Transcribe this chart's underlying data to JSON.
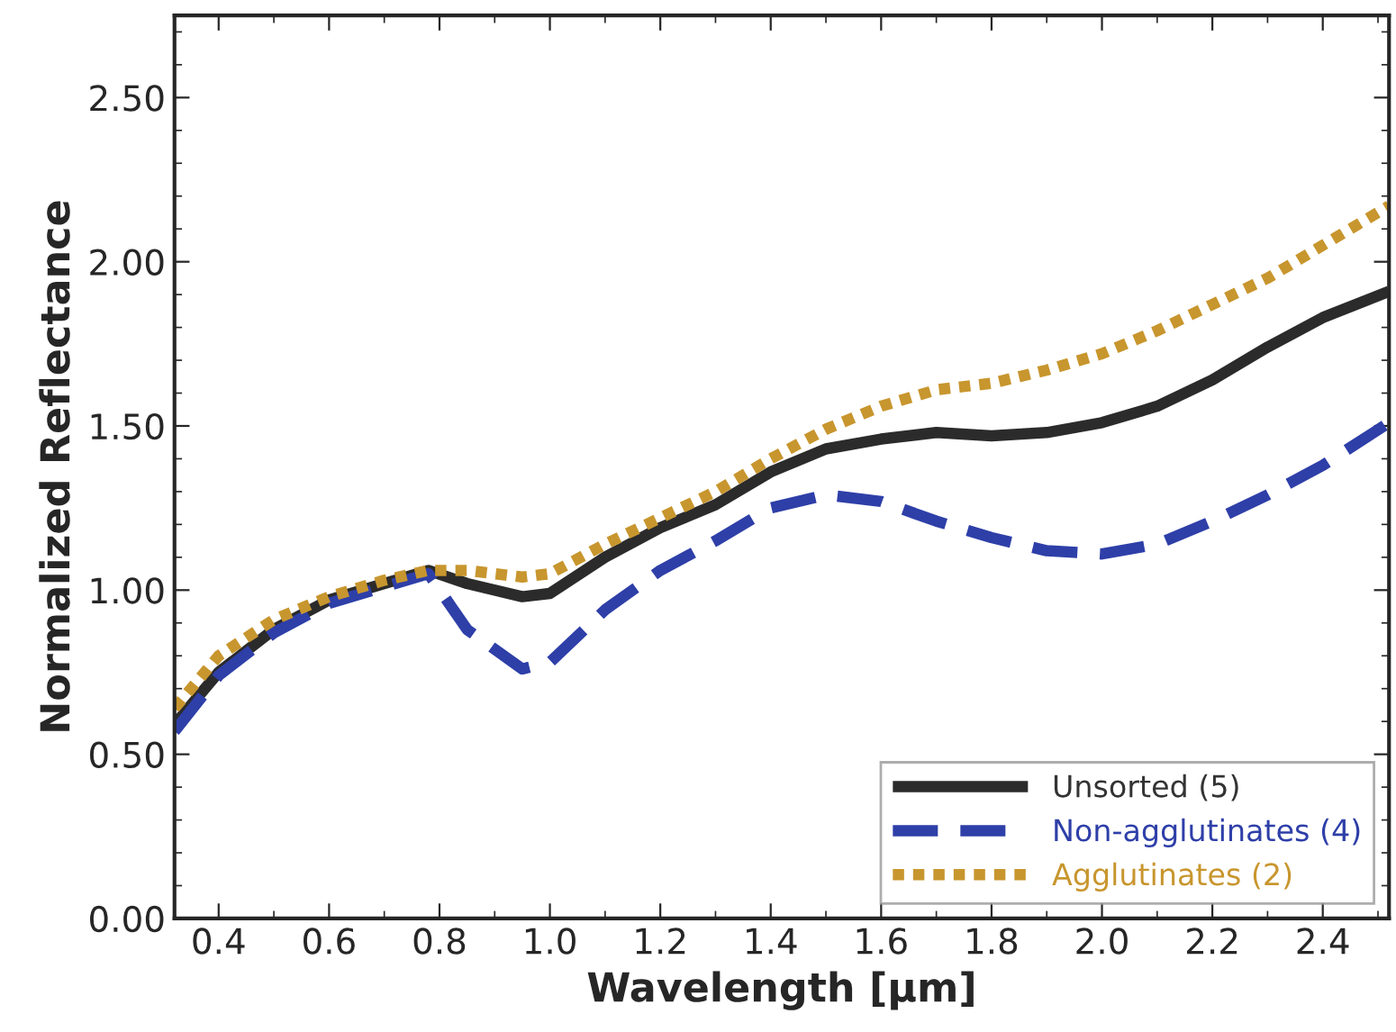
{
  "chart_data": {
    "type": "line",
    "xlabel": "Wavelength [µm]",
    "ylabel": "Normalized Reflectance",
    "x": [
      0.32,
      0.4,
      0.5,
      0.6,
      0.7,
      0.78,
      0.85,
      0.95,
      1.0,
      1.1,
      1.2,
      1.3,
      1.4,
      1.5,
      1.6,
      1.7,
      1.8,
      1.9,
      2.0,
      2.1,
      2.2,
      2.3,
      2.4,
      2.52
    ],
    "series": [
      {
        "name": "Unsorted (5)",
        "color": "#2b2b2b",
        "line_style": "solid",
        "values": [
          0.59,
          0.75,
          0.88,
          0.97,
          1.02,
          1.06,
          1.02,
          0.98,
          0.99,
          1.1,
          1.19,
          1.26,
          1.36,
          1.43,
          1.46,
          1.48,
          1.47,
          1.48,
          1.51,
          1.56,
          1.64,
          1.74,
          1.83,
          1.91
        ]
      },
      {
        "name": "Non-agglutinates (4)",
        "color": "#2e3fa8",
        "line_style": "dashed",
        "values": [
          0.57,
          0.74,
          0.87,
          0.96,
          1.01,
          1.05,
          0.88,
          0.76,
          0.78,
          0.94,
          1.06,
          1.15,
          1.25,
          1.29,
          1.27,
          1.21,
          1.16,
          1.12,
          1.11,
          1.14,
          1.21,
          1.29,
          1.38,
          1.51
        ]
      },
      {
        "name": "Agglutinates (2)",
        "color": "#c8962e",
        "line_style": "dotted",
        "values": [
          0.64,
          0.8,
          0.91,
          0.98,
          1.03,
          1.06,
          1.06,
          1.04,
          1.05,
          1.14,
          1.22,
          1.3,
          1.4,
          1.49,
          1.56,
          1.61,
          1.63,
          1.67,
          1.72,
          1.79,
          1.87,
          1.95,
          2.05,
          2.17
        ]
      }
    ],
    "xlim": [
      0.32,
      2.52
    ],
    "ylim": [
      0,
      2.75
    ],
    "xticks": [
      0.4,
      0.6,
      0.8,
      {
        "value": 1,
        "label": "1.0"
      },
      1.2,
      1.4,
      1.6,
      1.8,
      {
        "value": 2,
        "label": "2.0"
      },
      2.2,
      2.4
    ],
    "yticks": [
      {
        "value": 0,
        "label": "0.00"
      },
      {
        "value": 0.5,
        "label": "0.50"
      },
      {
        "value": 1.0,
        "label": "1.00"
      },
      {
        "value": 1.5,
        "label": "1.50"
      },
      {
        "value": 2.0,
        "label": "2.00"
      },
      {
        "value": 2.5,
        "label": "2.50"
      }
    ],
    "grid": false,
    "legend": "bottom right"
  }
}
